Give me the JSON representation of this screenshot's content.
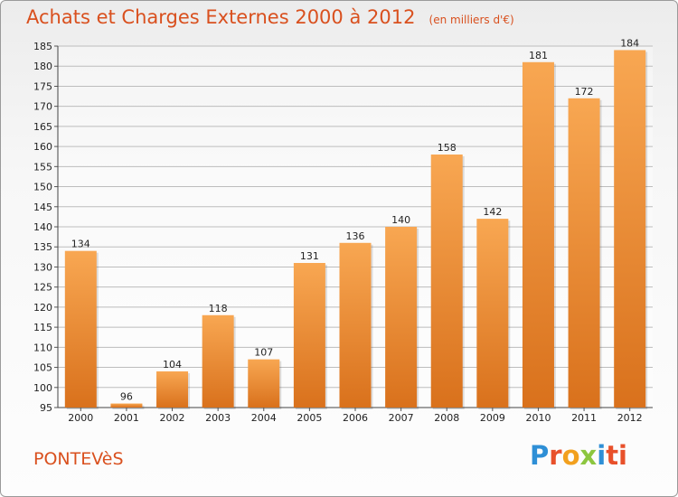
{
  "title": "Achats et Charges Externes 2000 à 2012",
  "unit": "(en milliers d'€)",
  "commune": "PONTEVèS",
  "brand": {
    "letters": [
      "P",
      "r",
      "o",
      "x",
      "i",
      "ti"
    ],
    "colors": [
      "#2e8fd6",
      "#e8502a",
      "#f2a01e",
      "#8cc63f",
      "#2e8fd6",
      "#e8502a"
    ]
  },
  "colors": {
    "bar_light": "#f8a752",
    "bar_dark": "#d9711c",
    "title": "#d9501e",
    "grid": "#bdbdbd"
  },
  "chart_data": {
    "type": "bar",
    "categories": [
      "2000",
      "2001",
      "2002",
      "2003",
      "2004",
      "2005",
      "2006",
      "2007",
      "2008",
      "2009",
      "2010",
      "2011",
      "2012"
    ],
    "values": [
      134,
      96,
      104,
      118,
      107,
      131,
      136,
      140,
      158,
      142,
      181,
      172,
      184
    ],
    "title": "Achats et Charges Externes 2000 à 2012",
    "xlabel": "",
    "ylabel": "",
    "ylim": [
      95,
      185
    ],
    "yticks": [
      95,
      100,
      105,
      110,
      115,
      120,
      125,
      130,
      135,
      140,
      145,
      150,
      155,
      160,
      165,
      170,
      175,
      180,
      185
    ],
    "grid": true,
    "data_labels": true
  }
}
